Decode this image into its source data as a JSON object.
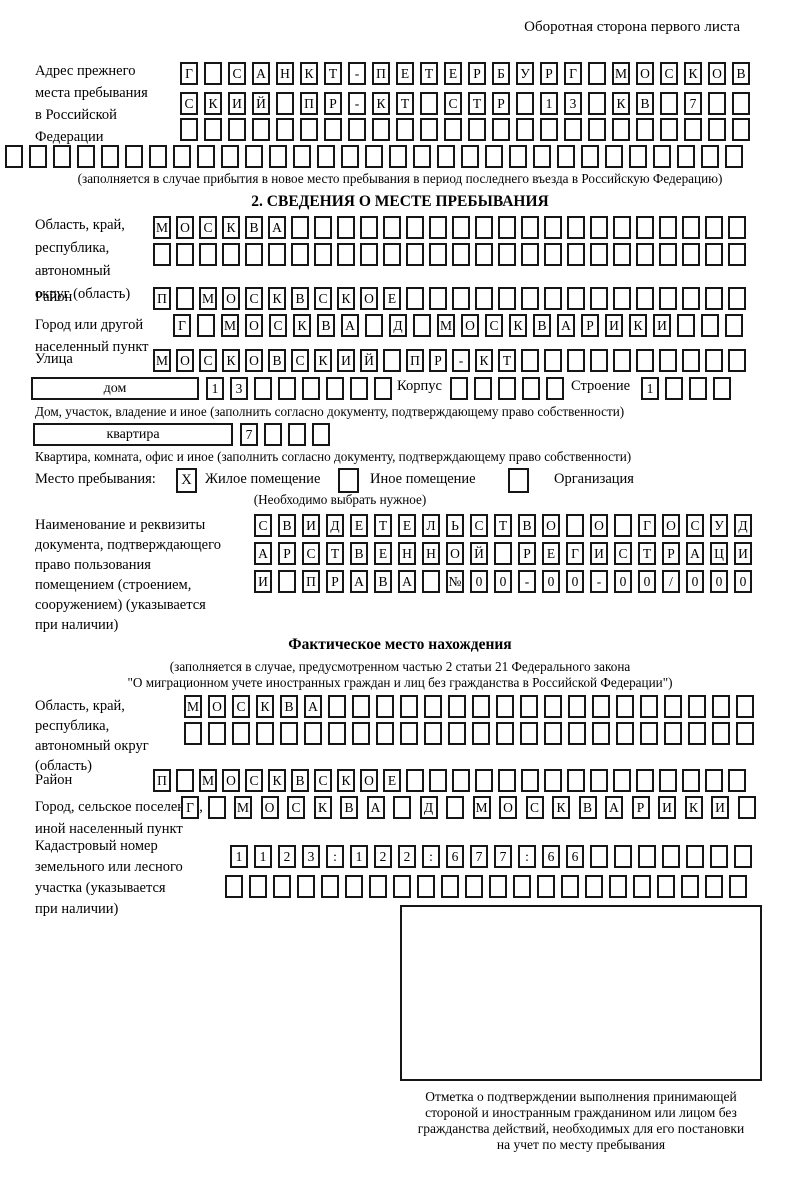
{
  "header": {
    "page_note": "Оборотная сторона первого листа"
  },
  "prev_address": {
    "label_lines": [
      "Адрес прежнего",
      "места пребывания",
      "в Российской",
      "Федерации"
    ],
    "rows": [
      [
        "Г",
        "",
        "С",
        "А",
        "Н",
        "К",
        "Т",
        "-",
        "П",
        "Е",
        "Т",
        "Е",
        "Р",
        "Б",
        "У",
        "Р",
        "Г",
        "",
        "М",
        "О",
        "С",
        "К",
        "О",
        "В"
      ],
      [
        "С",
        "К",
        "И",
        "Й",
        "",
        "П",
        "Р",
        "-",
        "К",
        "Т",
        "",
        "С",
        "Т",
        "Р",
        "",
        "1",
        "3",
        "",
        "К",
        "В",
        "",
        "7",
        "",
        ""
      ],
      [
        "",
        "",
        "",
        "",
        "",
        "",
        "",
        "",
        "",
        "",
        "",
        "",
        "",
        "",
        "",
        "",
        "",
        "",
        "",
        "",
        "",
        "",
        "",
        ""
      ]
    ],
    "row4": [
      "",
      "",
      "",
      "",
      "",
      "",
      "",
      "",
      "",
      "",
      "",
      "",
      "",
      "",
      "",
      "",
      "",
      "",
      "",
      "",
      "",
      "",
      "",
      "",
      "",
      "",
      "",
      "",
      "",
      "",
      ""
    ],
    "note": "(заполняется в случае прибытия в новое место пребывания в период последнего въезда в Российскую Федерацию)"
  },
  "section2": {
    "title": "2. СВЕДЕНИЯ О МЕСТЕ ПРЕБЫВАНИЯ",
    "region": {
      "label_lines": [
        "Область, край,",
        "республика,",
        "автономный",
        "округ (область)"
      ],
      "rows": [
        [
          "М",
          "О",
          "С",
          "К",
          "В",
          "А",
          "",
          "",
          "",
          "",
          "",
          "",
          "",
          "",
          "",
          "",
          "",
          "",
          "",
          "",
          "",
          "",
          "",
          "",
          "",
          ""
        ],
        [
          "",
          "",
          "",
          "",
          "",
          "",
          "",
          "",
          "",
          "",
          "",
          "",
          "",
          "",
          "",
          "",
          "",
          "",
          "",
          "",
          "",
          "",
          "",
          "",
          "",
          ""
        ]
      ]
    },
    "district": {
      "label": "Район",
      "row": [
        "П",
        "",
        "М",
        "О",
        "С",
        "К",
        "В",
        "С",
        "К",
        "О",
        "Е",
        "",
        "",
        "",
        "",
        "",
        "",
        "",
        "",
        "",
        "",
        "",
        "",
        "",
        "",
        ""
      ]
    },
    "city": {
      "label_lines": [
        "Город или другой",
        "населенный пункт"
      ],
      "row": [
        "Г",
        "",
        "М",
        "О",
        "С",
        "К",
        "В",
        "А",
        "",
        "Д",
        "",
        "М",
        "О",
        "С",
        "К",
        "В",
        "А",
        "Р",
        "И",
        "К",
        "И",
        "",
        "",
        ""
      ]
    },
    "street": {
      "label": "Улица",
      "row": [
        "М",
        "О",
        "С",
        "К",
        "О",
        "В",
        "С",
        "К",
        "И",
        "Й",
        "",
        "П",
        "Р",
        "-",
        "К",
        "Т",
        "",
        "",
        "",
        "",
        "",
        "",
        "",
        "",
        "",
        ""
      ]
    },
    "house": {
      "box_label": "дом",
      "cells": [
        "1",
        "3",
        "",
        "",
        "",
        "",
        "",
        ""
      ],
      "korpus_label": "Корпус",
      "korpus_cells": [
        "",
        "",
        "",
        "",
        ""
      ],
      "stroenie_label": "Строение",
      "stroenie_cells": [
        "1",
        "",
        "",
        ""
      ]
    },
    "house_note": "Дом, участок, владение и иное (заполнить согласно документу, подтверждающему право собственности)",
    "apartment": {
      "box_label": "квартира",
      "cells": [
        "7",
        "",
        "",
        ""
      ]
    },
    "apartment_note": "Квартира, комната, офис и иное (заполнить согласно документу, подтверждающему право собственности)",
    "stay_type": {
      "label": "Место пребывания:",
      "options": [
        {
          "label": "Жилое помещение",
          "checked": "X"
        },
        {
          "label": "Иное помещение",
          "checked": ""
        },
        {
          "label": "Организация",
          "checked": ""
        }
      ],
      "note": "(Необходимо выбрать нужное)"
    },
    "document": {
      "label_lines": [
        "Наименование и реквизиты",
        "документа, подтверждающего",
        "право пользования",
        "помещением (строением,",
        "сооружением) (указывается",
        "при наличии)"
      ],
      "rows": [
        [
          "С",
          "В",
          "И",
          "Д",
          "Е",
          "Т",
          "Е",
          "Л",
          "Ь",
          "С",
          "Т",
          "В",
          "О",
          "",
          "О",
          "",
          "Г",
          "О",
          "С",
          "У",
          "Д"
        ],
        [
          "А",
          "Р",
          "С",
          "Т",
          "В",
          "Е",
          "Н",
          "Н",
          "О",
          "Й",
          "",
          "Р",
          "Е",
          "Г",
          "И",
          "С",
          "Т",
          "Р",
          "А",
          "Ц",
          "И"
        ],
        [
          "И",
          "",
          "П",
          "Р",
          "А",
          "В",
          "А",
          "",
          "№",
          "0",
          "0",
          "-",
          "0",
          "0",
          "-",
          "0",
          "0",
          "/",
          "0",
          "0",
          "0"
        ]
      ]
    }
  },
  "actual_location": {
    "title": "Фактическое место нахождения",
    "note_lines": [
      "(заполняется в случае, предусмотренном частью 2 статьи 21 Федерального закона",
      "\"О миграционном учете иностранных граждан и лиц без гражданства в Российской Федерации\")"
    ],
    "region": {
      "label_lines": [
        "Область, край,",
        "республика,",
        "автономный округ",
        "(область)"
      ],
      "rows": [
        [
          "М",
          "О",
          "С",
          "К",
          "В",
          "А",
          "",
          "",
          "",
          "",
          "",
          "",
          "",
          "",
          "",
          "",
          "",
          "",
          "",
          "",
          "",
          "",
          "",
          ""
        ],
        [
          "",
          "",
          "",
          "",
          "",
          "",
          "",
          "",
          "",
          "",
          "",
          "",
          "",
          "",
          "",
          "",
          "",
          "",
          "",
          "",
          "",
          "",
          "",
          ""
        ]
      ]
    },
    "district": {
      "label": "Район",
      "row": [
        "П",
        "",
        "М",
        "О",
        "С",
        "К",
        "В",
        "С",
        "К",
        "О",
        "Е",
        "",
        "",
        "",
        "",
        "",
        "",
        "",
        "",
        "",
        "",
        "",
        "",
        "",
        "",
        ""
      ]
    },
    "city": {
      "label_lines": [
        "Город, сельское поселение,",
        "иной населенный пункт"
      ],
      "row": [
        "Г",
        "",
        "М",
        "О",
        "С",
        "К",
        "В",
        "А",
        "",
        "Д",
        "",
        "М",
        "О",
        "С",
        "К",
        "В",
        "А",
        "Р",
        "И",
        "К",
        "И",
        ""
      ]
    },
    "cadastral": {
      "label_lines": [
        "Кадастровый номер",
        "земельного или лесного",
        "участка (указывается",
        "при наличии)"
      ],
      "rows": [
        [
          "1",
          "1",
          "2",
          "3",
          ":",
          "1",
          "2",
          "2",
          ":",
          "6",
          "7",
          "7",
          ":",
          "6",
          "6",
          "",
          "",
          "",
          "",
          "",
          "",
          ""
        ],
        [
          "",
          "",
          "",
          "",
          "",
          "",
          "",
          "",
          "",
          "",
          "",
          "",
          "",
          "",
          "",
          "",
          "",
          "",
          "",
          "",
          "",
          ""
        ]
      ]
    }
  },
  "stamp": {
    "caption_lines": [
      "Отметка о подтверждении выполнения принимающей",
      "стороной и иностранным гражданином или лицом без",
      "гражданства действий, необходимых для его постановки",
      "на учет по месту пребывания"
    ]
  }
}
